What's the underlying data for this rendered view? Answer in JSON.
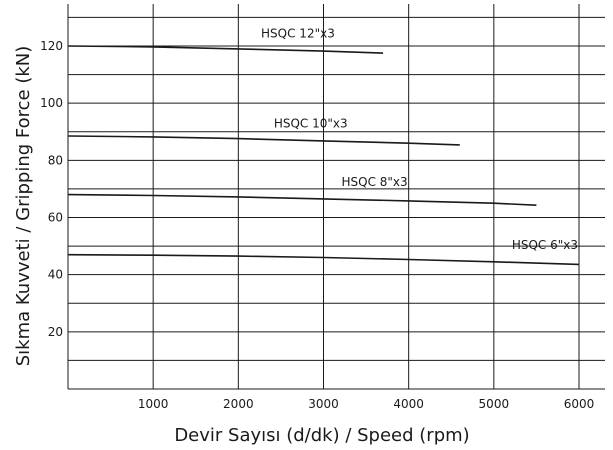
{
  "chart_data": {
    "type": "line",
    "title": "",
    "xlabel": "Devir Sayısı (d/dk) / Speed (rpm)",
    "ylabel": "Sıkma Kuvveti / Gripping Force (kN)",
    "xlim": [
      0,
      6000
    ],
    "ylim": [
      0,
      130
    ],
    "grid": true,
    "x_ticks": [
      1000,
      2000,
      3000,
      4000,
      5000,
      6000
    ],
    "y_ticks": [
      20,
      40,
      60,
      80,
      100,
      120
    ],
    "series": [
      {
        "name": "HSQC 12\"x3",
        "x": [
          0,
          1000,
          2000,
          3000,
          3700
        ],
        "y": [
          120,
          119.7,
          119,
          118.2,
          117.5
        ]
      },
      {
        "name": "HSQC 10\"x3",
        "x": [
          0,
          1000,
          2000,
          3000,
          4000,
          4600
        ],
        "y": [
          88.5,
          88.2,
          87.6,
          86.8,
          86,
          85.4
        ]
      },
      {
        "name": "HSQC 8\"x3",
        "x": [
          0,
          1000,
          2000,
          3000,
          4000,
          5000,
          5500
        ],
        "y": [
          68,
          67.7,
          67.2,
          66.5,
          65.8,
          65,
          64.3
        ]
      },
      {
        "name": "HSQC 6\"x3",
        "x": [
          0,
          1000,
          2000,
          3000,
          4000,
          5000,
          6000
        ],
        "y": [
          47,
          46.8,
          46.5,
          46,
          45.3,
          44.5,
          43.6
        ]
      }
    ]
  }
}
